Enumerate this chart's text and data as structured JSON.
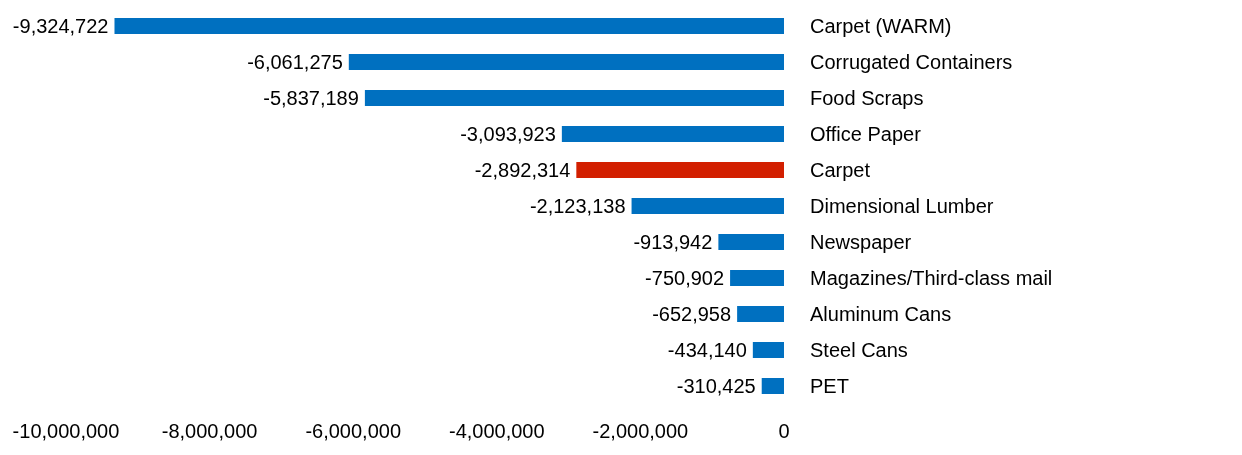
{
  "chart_data": {
    "type": "bar",
    "orientation": "horizontal",
    "categories": [
      "Carpet (WARM)",
      "Corrugated Containers",
      "Food Scraps",
      "Office Paper",
      "Carpet",
      "Dimensional Lumber",
      "Newspaper",
      "Magazines/Third-class mail",
      "Aluminum Cans",
      "Steel Cans",
      "PET"
    ],
    "values": [
      -9324722,
      -6061275,
      -5837189,
      -3093923,
      -2892314,
      -2123138,
      -913942,
      -750902,
      -652958,
      -434140,
      -310425
    ],
    "colors": [
      "#0070c0",
      "#0070c0",
      "#0070c0",
      "#0070c0",
      "#d21f00",
      "#0070c0",
      "#0070c0",
      "#0070c0",
      "#0070c0",
      "#0070c0",
      "#0070c0"
    ],
    "xlim": [
      -10000000,
      0
    ],
    "xticks": [
      {
        "value": -10000000,
        "label": "-10,000,000"
      },
      {
        "value": -8000000,
        "label": "-8,000,000"
      },
      {
        "value": -6000000,
        "label": "-6,000,000"
      },
      {
        "value": -4000000,
        "label": "-4,000,000"
      },
      {
        "value": -2000000,
        "label": "-2,000,000"
      },
      0
    ],
    "value_labels": [
      "-9,324,722",
      "-6,061,275",
      "-5,837,189",
      "-3,093,923",
      "-2,892,314",
      "-2,123,138",
      "-913,942",
      "-750,902",
      "-652,958",
      "-434,140",
      "-310,425"
    ],
    "grid": false,
    "legend": false
  }
}
